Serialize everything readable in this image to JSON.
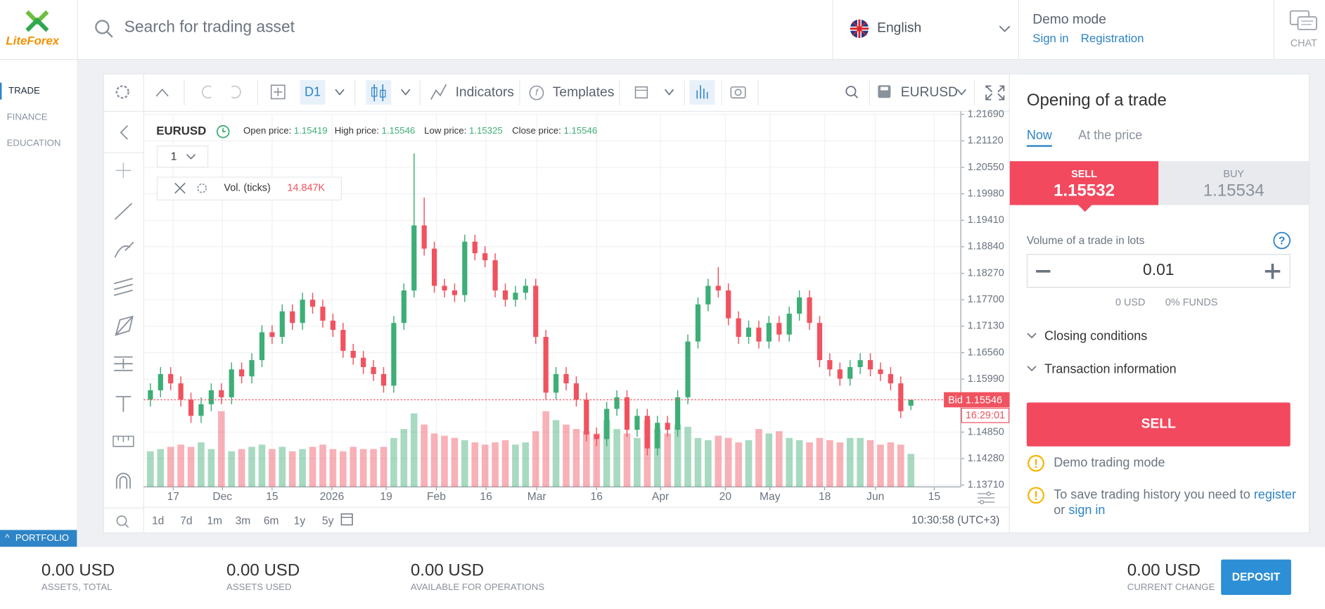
{
  "header": {
    "logo": "LiteForex",
    "search_placeholder": "Search for trading asset",
    "language": "English",
    "mode": "Demo mode",
    "sign_in": "Sign in",
    "registration": "Registration",
    "chat": "CHAT"
  },
  "sidebar": {
    "items": [
      "TRADE",
      "FINANCE",
      "EDUCATION"
    ],
    "portfolio": "PORTFOLIO"
  },
  "toolbar": {
    "timeframe": "D1",
    "indicators": "Indicators",
    "templates": "Templates",
    "symbol": "EURUSD"
  },
  "chart_data": {
    "type": "candlestick",
    "symbol": "EURUSD",
    "interval": "1",
    "open_label": "Open price:",
    "high_label": "High price:",
    "low_label": "Low price:",
    "close_label": "Close price:",
    "volume_name": "Vol. (ticks)",
    "volume_value_label": "14.847K",
    "bid_label": "Bid",
    "countdown": "16:29:01",
    "up_color": "#3dae76",
    "down_color": "#f0525f",
    "grid": true,
    "open": [
      1.1555,
      1.1575,
      1.161,
      1.159,
      1.1555,
      1.152,
      1.1545,
      1.1575,
      1.156,
      1.162,
      1.1605,
      1.164,
      1.17,
      1.169,
      1.1745,
      1.172,
      1.177,
      1.1755,
      1.1725,
      1.1705,
      1.166,
      1.1645,
      1.1625,
      1.161,
      1.1585,
      1.172,
      1.179,
      1.193,
      1.188,
      1.18,
      1.179,
      1.178,
      1.1895,
      1.187,
      1.1855,
      1.179,
      1.177,
      1.1785,
      1.18,
      1.169,
      1.157,
      1.161,
      1.159,
      1.1555,
      1.148,
      1.147,
      1.1535,
      1.156,
      1.149,
      1.152,
      1.145,
      1.1505,
      1.149,
      1.156,
      1.168,
      1.176,
      1.18,
      1.179,
      1.173,
      1.169,
      1.171,
      1.168,
      1.172,
      1.1695,
      1.174,
      1.1775,
      1.172,
      1.164,
      1.162,
      1.16,
      1.1625,
      1.164,
      1.162,
      1.161,
      1.159,
      1.15419
    ],
    "high": [
      1.159,
      1.1625,
      1.1625,
      1.1605,
      1.157,
      1.156,
      1.159,
      1.159,
      1.1635,
      1.1635,
      1.1655,
      1.1715,
      1.1715,
      1.176,
      1.176,
      1.1785,
      1.1785,
      1.177,
      1.174,
      1.172,
      1.1675,
      1.166,
      1.164,
      1.1625,
      1.1735,
      1.1805,
      1.2085,
      1.199,
      1.1895,
      1.1815,
      1.1805,
      1.191,
      1.191,
      1.1885,
      1.187,
      1.1805,
      1.18,
      1.1815,
      1.1815,
      1.1705,
      1.1625,
      1.1625,
      1.1605,
      1.157,
      1.1495,
      1.155,
      1.1575,
      1.1575,
      1.1535,
      1.1535,
      1.152,
      1.152,
      1.1575,
      1.1695,
      1.1775,
      1.1815,
      1.184,
      1.1805,
      1.1745,
      1.1725,
      1.1725,
      1.1735,
      1.1735,
      1.1755,
      1.179,
      1.179,
      1.1735,
      1.1655,
      1.1635,
      1.164,
      1.1655,
      1.1655,
      1.1635,
      1.1625,
      1.1605,
      1.15546
    ],
    "low": [
      1.154,
      1.156,
      1.1575,
      1.154,
      1.1505,
      1.1505,
      1.153,
      1.1545,
      1.1545,
      1.159,
      1.159,
      1.1625,
      1.1675,
      1.1675,
      1.1705,
      1.1705,
      1.174,
      1.171,
      1.169,
      1.1645,
      1.163,
      1.161,
      1.1595,
      1.157,
      1.157,
      1.1705,
      1.1775,
      1.1865,
      1.1785,
      1.1775,
      1.1765,
      1.1765,
      1.1855,
      1.184,
      1.1775,
      1.1755,
      1.1755,
      1.177,
      1.1675,
      1.1555,
      1.1555,
      1.1575,
      1.154,
      1.1465,
      1.1455,
      1.1455,
      1.152,
      1.1475,
      1.1475,
      1.1435,
      1.1435,
      1.1475,
      1.1475,
      1.1545,
      1.1665,
      1.1745,
      1.1775,
      1.1715,
      1.1675,
      1.1675,
      1.1665,
      1.1665,
      1.168,
      1.168,
      1.1725,
      1.1705,
      1.1625,
      1.1605,
      1.1585,
      1.1585,
      1.161,
      1.1605,
      1.1595,
      1.1575,
      1.1515,
      1.15325
    ],
    "close": [
      1.1575,
      1.161,
      1.159,
      1.1555,
      1.152,
      1.1545,
      1.1575,
      1.156,
      1.162,
      1.1605,
      1.164,
      1.17,
      1.169,
      1.1745,
      1.172,
      1.177,
      1.1755,
      1.1725,
      1.1705,
      1.166,
      1.1645,
      1.1625,
      1.161,
      1.1585,
      1.172,
      1.179,
      1.193,
      1.188,
      1.18,
      1.179,
      1.178,
      1.1895,
      1.187,
      1.1855,
      1.179,
      1.177,
      1.1785,
      1.18,
      1.169,
      1.157,
      1.161,
      1.159,
      1.1555,
      1.148,
      1.147,
      1.1535,
      1.156,
      1.149,
      1.152,
      1.145,
      1.1505,
      1.149,
      1.156,
      1.168,
      1.176,
      1.18,
      1.179,
      1.173,
      1.169,
      1.171,
      1.168,
      1.172,
      1.1695,
      1.174,
      1.1775,
      1.172,
      1.164,
      1.162,
      1.16,
      1.1625,
      1.164,
      1.162,
      1.161,
      1.159,
      1.153,
      1.15546
    ],
    "volume": [
      16000,
      17000,
      18000,
      19000,
      18000,
      20000,
      17000,
      34000,
      16000,
      17000,
      18000,
      19000,
      17000,
      18000,
      16000,
      17000,
      18000,
      19000,
      17000,
      16000,
      18000,
      17000,
      17000,
      18000,
      22000,
      26000,
      33000,
      28000,
      24000,
      23000,
      22000,
      21000,
      20000,
      19000,
      20000,
      21000,
      19000,
      20000,
      25000,
      34000,
      30000,
      28000,
      26000,
      25000,
      24000,
      30000,
      26000,
      24000,
      22000,
      30000,
      26000,
      24000,
      28000,
      27000,
      22000,
      21000,
      23000,
      22000,
      20000,
      21000,
      26000,
      24000,
      25000,
      22000,
      21000,
      20000,
      22000,
      21000,
      20000,
      22000,
      22000,
      21000,
      19000,
      20000,
      19000,
      14847
    ],
    "volume_lim": [
      0,
      36000
    ],
    "ylim": [
      1.1367,
      1.217
    ],
    "yticks": [
      {
        "value": 1.2169,
        "label": "1.21690"
      },
      {
        "value": 1.2112,
        "label": "1.21120"
      },
      {
        "value": 1.2055,
        "label": "1.20550"
      },
      {
        "value": 1.1998,
        "label": "1.19980"
      },
      {
        "value": 1.1941,
        "label": "1.19410"
      },
      {
        "value": 1.1884,
        "label": "1.18840"
      },
      {
        "value": 1.1827,
        "label": "1.18270"
      },
      {
        "value": 1.177,
        "label": "1.17700"
      },
      {
        "value": 1.1713,
        "label": "1.17130"
      },
      {
        "value": 1.1656,
        "label": "1.16560"
      },
      {
        "value": 1.1599,
        "label": "1.15990"
      },
      {
        "value": 1.1485,
        "label": "1.14850"
      },
      {
        "value": 1.1428,
        "label": "1.14280"
      },
      {
        "value": 1.1371,
        "label": "1.13710"
      }
    ],
    "xticks": [
      {
        "value": 2.25,
        "label": "17"
      },
      {
        "value": 7.1,
        "label": "Dec"
      },
      {
        "value": 12,
        "label": "15"
      },
      {
        "value": 17.9,
        "label": "2026"
      },
      {
        "value": 23.25,
        "label": "19"
      },
      {
        "value": 28.2,
        "label": "Feb"
      },
      {
        "value": 33.1,
        "label": "16"
      },
      {
        "value": 38.1,
        "label": "Mar"
      },
      {
        "value": 44,
        "label": "16"
      },
      {
        "value": 50.3,
        "label": "Apr"
      },
      {
        "value": 56.7,
        "label": "20"
      },
      {
        "value": 61.1,
        "label": "May"
      },
      {
        "value": 66.5,
        "label": "18"
      },
      {
        "value": 71.5,
        "label": "Jun"
      },
      {
        "value": 77.3,
        "label": "15"
      }
    ],
    "periods": [
      "1d",
      "7d",
      "1m",
      "3m",
      "6m",
      "1y",
      "5y"
    ],
    "time": "10:30:58 (UTC+3)"
  },
  "trade": {
    "title": "Opening of a trade",
    "tabs": [
      "Now",
      "At the price"
    ],
    "sell_label": "SELL",
    "sell_price": 1.15532,
    "buy_label": "BUY",
    "buy_price": 1.15534,
    "volume_label": "Volume of a trade in lots",
    "lots": 0.01,
    "margin": "0 USD",
    "funds": "0% FUNDS",
    "closing": "Closing conditions",
    "transaction": "Transaction information",
    "sell_button": "SELL",
    "demo": "Demo trading mode",
    "save_note": "To save trading history you need to",
    "register": "register",
    "or": "or",
    "sign_in": "sign in"
  },
  "footer": {
    "items": [
      {
        "value": "0.00 USD",
        "label": "ASSETS, TOTAL"
      },
      {
        "value": "0.00 USD",
        "label": "ASSETS USED"
      },
      {
        "value": "0.00 USD",
        "label": "AVAILABLE FOR OPERATIONS"
      }
    ],
    "current": {
      "value": "0.00 USD",
      "label": "CURRENT CHANGE"
    },
    "deposit": "DEPOSIT"
  }
}
